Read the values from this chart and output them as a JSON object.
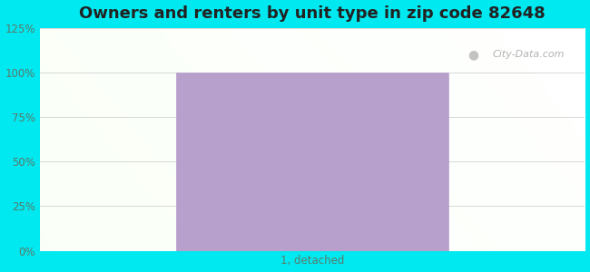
{
  "title": "Owners and renters by unit type in zip code 82648",
  "categories": [
    "1, detached"
  ],
  "values": [
    100
  ],
  "bar_color": "#b8a0cc",
  "bar_width": 0.5,
  "ylim": [
    0,
    125
  ],
  "yticks": [
    0,
    25,
    50,
    75,
    100,
    125
  ],
  "yticklabels": [
    "0%",
    "25%",
    "50%",
    "75%",
    "100%",
    "125%"
  ],
  "background_color_outer": "#00e8f0",
  "title_fontsize": 13,
  "tick_fontsize": 8.5,
  "xlabel_fontsize": 8.5,
  "watermark_text": "City-Data.com",
  "grid_color": "#d8d8d8",
  "bar_edge_color": "#b8a0cc",
  "tick_color": "#5a7a6a",
  "title_color": "#222222"
}
